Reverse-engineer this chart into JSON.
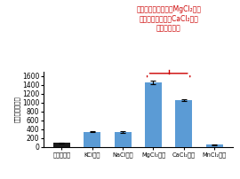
{
  "categories": [
    "金属塩なし",
    "KCl添加",
    "NaCl添加",
    "MgCl₂添加",
    "CaCl₂添加",
    "MnCl₂添加"
  ],
  "values": [
    90,
    340,
    330,
    1460,
    1050,
    45
  ],
  "errors": [
    8,
    15,
    14,
    35,
    20,
    7
  ],
  "bar_colors": [
    "#1a1a1a",
    "#5b9bd5",
    "#5b9bd5",
    "#5b9bd5",
    "#5b9bd5",
    "#5b9bd5"
  ],
  "ylabel": "酵素活性（％）",
  "ylim": [
    0,
    1700
  ],
  "yticks": [
    0,
    200,
    400,
    600,
    800,
    1000,
    1200,
    1400,
    1600
  ],
  "annotation_text": "塩化マグネシウム（MgCl₂）と\n塩化カルシウム（CaCl₂）で\n顧著に活性化",
  "annotation_color": "#cc0000",
  "background_color": "#ffffff"
}
